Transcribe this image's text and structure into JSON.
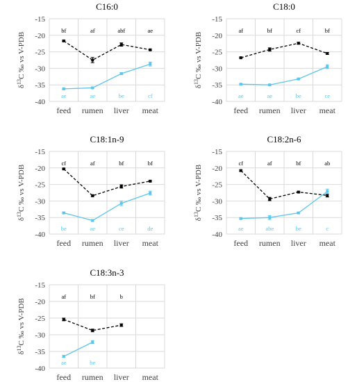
{
  "chart_data": [
    {
      "type": "line",
      "title": "C16:0",
      "ylabel": "δ13C ‰ vs V-PDB",
      "ylim": [
        -40,
        -15
      ],
      "yticks": [
        -15,
        -20,
        -25,
        -30,
        -35,
        -40
      ],
      "categories": [
        "feed",
        "rumen",
        "liver",
        "meat"
      ],
      "grid": true,
      "series": [
        {
          "style": "dashed",
          "color": "#000000",
          "values": [
            -21.7,
            -27.5,
            -22.8,
            -24.4
          ],
          "errors": [
            0.2,
            0.8,
            0.5,
            0.2
          ],
          "labels": [
            "bf",
            "af",
            "abf",
            "ae"
          ]
        },
        {
          "style": "solid",
          "color": "#5bc6ec",
          "values": [
            -36.2,
            -35.9,
            -31.6,
            -28.7
          ],
          "errors": [
            0.2,
            0.2,
            0.3,
            0.6
          ],
          "labels": [
            "ae",
            "ae",
            "be",
            "cf"
          ]
        }
      ]
    },
    {
      "type": "line",
      "title": "C18:0",
      "ylabel": "δ13C ‰ vs V-PDB",
      "ylim": [
        -40,
        -15
      ],
      "yticks": [
        -15,
        -20,
        -25,
        -30,
        -35,
        -40
      ],
      "categories": [
        "feed",
        "rumen",
        "liver",
        "meat"
      ],
      "grid": true,
      "series": [
        {
          "style": "dashed",
          "color": "#000000",
          "values": [
            -26.8,
            -24.3,
            -22.4,
            -25.5
          ],
          "errors": [
            0.2,
            0.5,
            0.3,
            0.3
          ],
          "labels": [
            "af",
            "bf",
            "cf",
            "bf"
          ]
        },
        {
          "style": "solid",
          "color": "#5bc6ec",
          "values": [
            -34.8,
            -35.0,
            -33.2,
            -29.5
          ],
          "errors": [
            0.2,
            0.2,
            0.2,
            0.6
          ],
          "labels": [
            "ae",
            "ae",
            "be",
            "ce"
          ]
        }
      ]
    },
    {
      "type": "line",
      "title": "C18:1n-9",
      "ylabel": "δ13C ‰ vs V-PDB",
      "ylim": [
        -40,
        -15
      ],
      "yticks": [
        -15,
        -20,
        -25,
        -30,
        -35,
        -40
      ],
      "categories": [
        "feed",
        "rumen",
        "liver",
        "meat"
      ],
      "grid": true,
      "series": [
        {
          "style": "dashed",
          "color": "#000000",
          "values": [
            -20.3,
            -28.4,
            -25.6,
            -24.0
          ],
          "errors": [
            0.2,
            0.3,
            0.5,
            0.2
          ],
          "labels": [
            "cf",
            "af",
            "bf",
            "bf"
          ]
        },
        {
          "style": "solid",
          "color": "#5bc6ec",
          "values": [
            -33.6,
            -35.9,
            -30.7,
            -27.6
          ],
          "errors": [
            0.2,
            0.3,
            0.7,
            0.6
          ],
          "labels": [
            "be",
            "ae",
            "ce",
            "de"
          ]
        }
      ]
    },
    {
      "type": "line",
      "title": "C18:2n-6",
      "ylabel": "δ13C ‰ vs V-PDB",
      "ylim": [
        -40,
        -15
      ],
      "yticks": [
        -15,
        -20,
        -25,
        -30,
        -35,
        -40
      ],
      "categories": [
        "feed",
        "rumen",
        "liver",
        "meat"
      ],
      "grid": true,
      "series": [
        {
          "style": "dashed",
          "color": "#000000",
          "values": [
            -20.8,
            -29.4,
            -27.3,
            -28.3
          ],
          "errors": [
            0.2,
            0.5,
            0.2,
            0.5
          ],
          "labels": [
            "cf",
            "af",
            "bf",
            "ab"
          ]
        },
        {
          "style": "solid",
          "color": "#5bc6ec",
          "values": [
            -35.3,
            -35.0,
            -33.6,
            -27.1
          ],
          "errors": [
            0.2,
            0.6,
            0.2,
            0.7
          ],
          "labels": [
            "ae",
            "abe",
            "be",
            "c"
          ]
        }
      ]
    },
    {
      "type": "line",
      "title": "C18:3n-3",
      "ylabel": "δ13C ‰ vs V-PDB",
      "ylim": [
        -40,
        -15
      ],
      "yticks": [
        -15,
        -20,
        -25,
        -30,
        -35,
        -40
      ],
      "categories": [
        "feed",
        "rumen",
        "liver",
        "meat"
      ],
      "grid": true,
      "series": [
        {
          "style": "dashed",
          "color": "#000000",
          "values": [
            -25.4,
            -28.7,
            -27.1,
            null
          ],
          "errors": [
            0.4,
            0.4,
            0.4,
            null
          ],
          "labels": [
            "af",
            "bf",
            "b",
            ""
          ]
        },
        {
          "style": "solid",
          "color": "#5bc6ec",
          "values": [
            -36.5,
            -32.2,
            null,
            null
          ],
          "errors": [
            0.3,
            0.4,
            null,
            null
          ],
          "labels": [
            "ae",
            "be",
            "",
            ""
          ]
        }
      ]
    }
  ]
}
